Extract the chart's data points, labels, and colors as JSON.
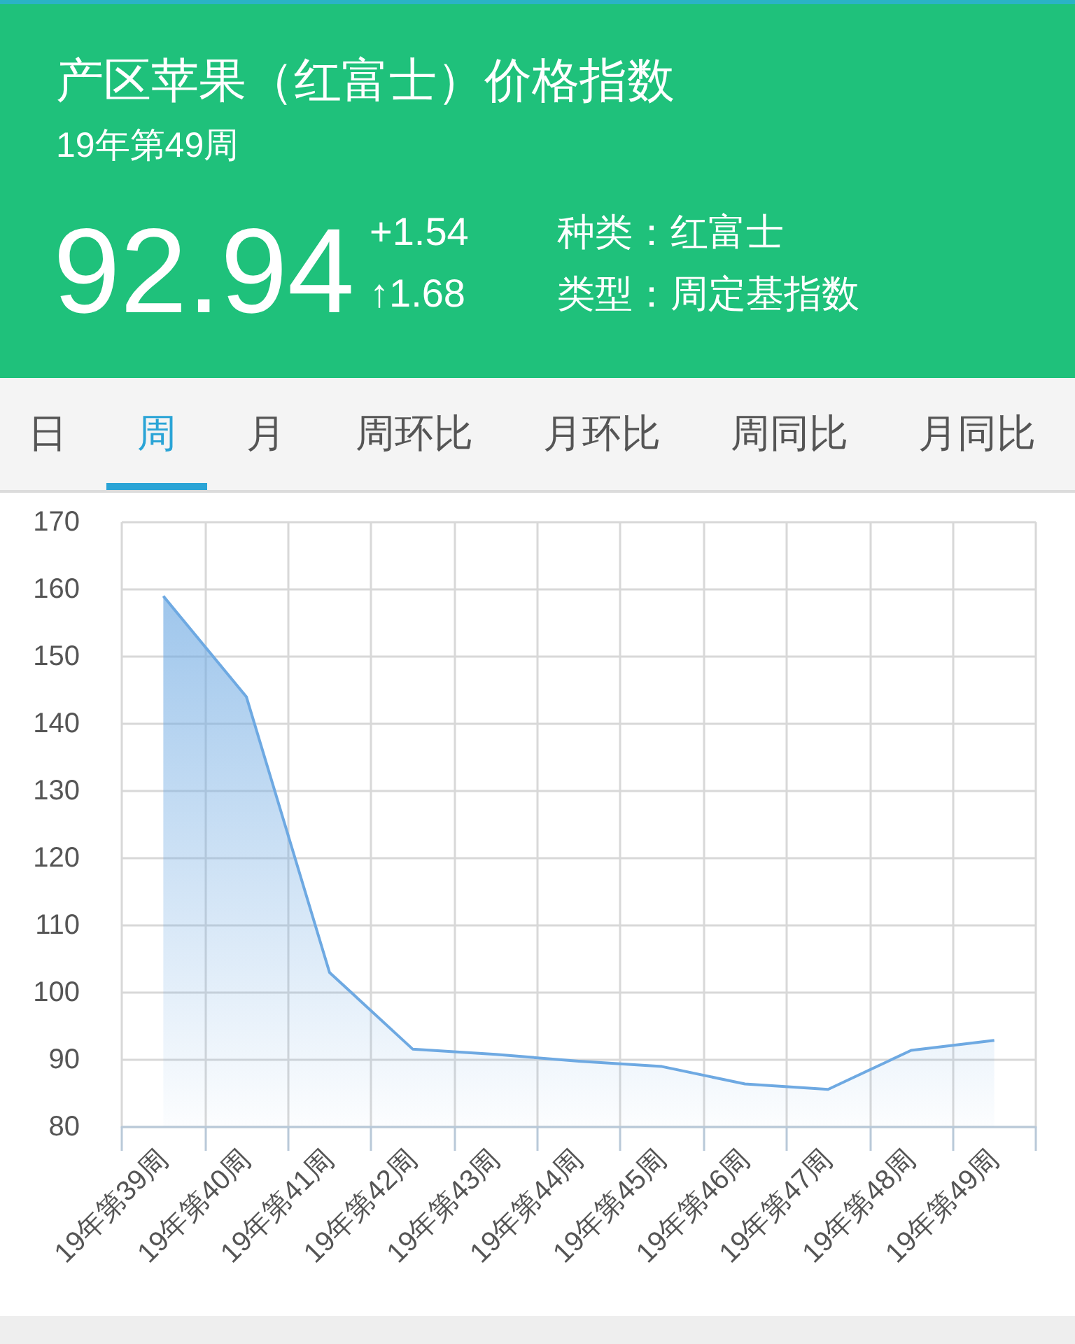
{
  "chart_data": {
    "type": "area",
    "title": "产区苹果（红富士）价格指数",
    "subtitle": "19年第49周",
    "annotations": [
      "92.94",
      "+1.54",
      "↑1.68",
      "种类：红富士",
      "类型：周定基指数",
      "日",
      "周",
      "月",
      "周环比",
      "月环比",
      "周同比",
      "月同比"
    ],
    "categories": [
      "19年第39周",
      "19年第40周",
      "19年第41周",
      "19年第42周",
      "19年第43周",
      "19年第44周",
      "19年第45周",
      "19年第46周",
      "19年第47周",
      "19年第48周",
      "19年第49周"
    ],
    "values": [
      159,
      144,
      103,
      91.6,
      90.8,
      89.8,
      89.0,
      86.4,
      85.6,
      91.4,
      92.9
    ],
    "color": "#6ea9e2",
    "ylim": [
      80,
      170
    ],
    "yticks": [
      80,
      90,
      100,
      110,
      120,
      130,
      140,
      150,
      160,
      170
    ],
    "grid": true,
    "marker": "none"
  }
}
